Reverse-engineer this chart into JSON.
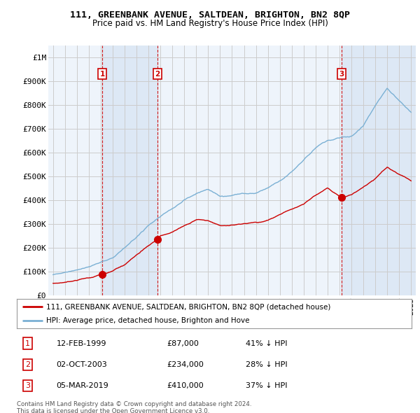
{
  "title": "111, GREENBANK AVENUE, SALTDEAN, BRIGHTON, BN2 8QP",
  "subtitle": "Price paid vs. HM Land Registry's House Price Index (HPI)",
  "legend_label_red": "111, GREENBANK AVENUE, SALTDEAN, BRIGHTON, BN2 8QP (detached house)",
  "legend_label_blue": "HPI: Average price, detached house, Brighton and Hove",
  "footer_line1": "Contains HM Land Registry data © Crown copyright and database right 2024.",
  "footer_line2": "This data is licensed under the Open Government Licence v3.0.",
  "transactions": [
    {
      "num": "1",
      "date": "12-FEB-1999",
      "price": "£87,000",
      "change": "41% ↓ HPI",
      "year": 1999.12
    },
    {
      "num": "2",
      "date": "02-OCT-2003",
      "price": "£234,000",
      "change": "28% ↓ HPI",
      "year": 2003.75
    },
    {
      "num": "3",
      "date": "05-MAR-2019",
      "price": "£410,000",
      "change": "37% ↓ HPI",
      "year": 2019.17
    }
  ],
  "transaction_values": [
    87000,
    234000,
    410000
  ],
  "transaction_years": [
    1999.12,
    2003.75,
    2019.17
  ],
  "ylim": [
    0,
    1050000
  ],
  "xlim_start": 1994.6,
  "xlim_end": 2025.4,
  "color_red": "#cc0000",
  "color_blue": "#7ab0d4",
  "color_grid": "#cccccc",
  "color_dashed": "#cc0000",
  "color_shade": "#ddeeff",
  "bg_color": "#ffffff",
  "plot_bg": "#eef4fb"
}
